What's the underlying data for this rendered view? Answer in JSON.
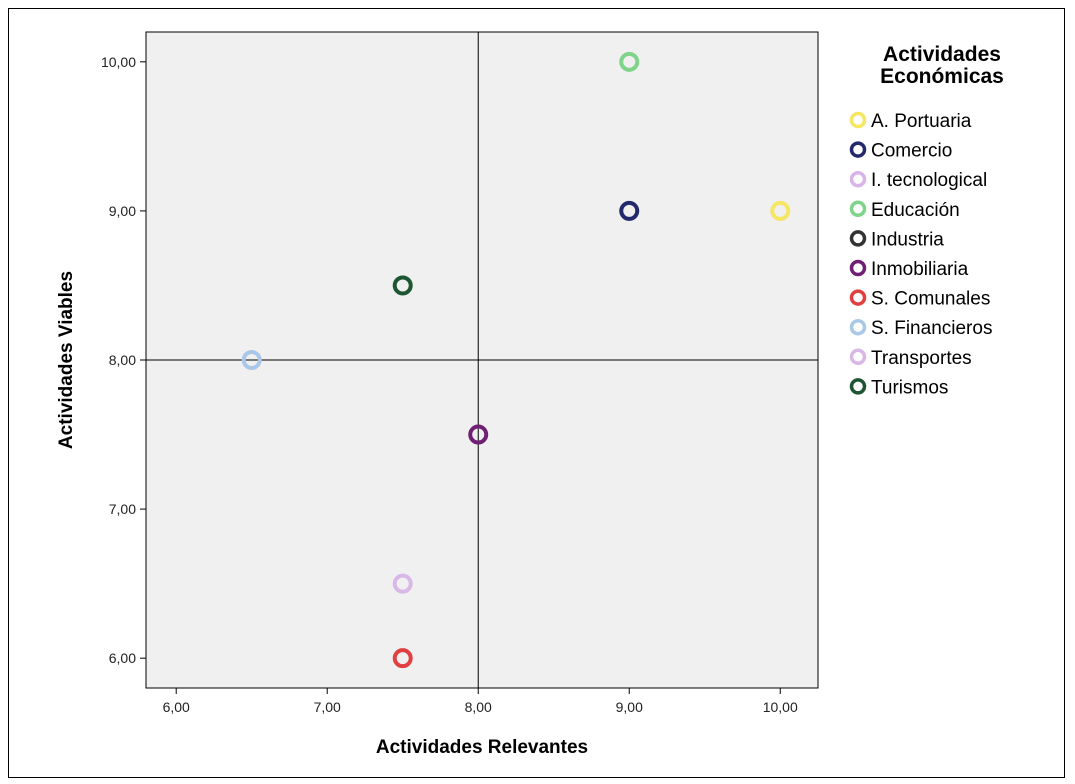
{
  "chart_data": {
    "type": "scatter",
    "xlabel": "Actividades Relevantes",
    "ylabel": "Actividades Viables",
    "xlim": [
      5.8,
      10.25
    ],
    "ylim": [
      5.8,
      10.2
    ],
    "x_ticks": [
      "6,00",
      "7,00",
      "8,00",
      "9,00",
      "10,00"
    ],
    "x_tick_values": [
      6,
      7,
      8,
      9,
      10
    ],
    "y_ticks": [
      "6,00",
      "7,00",
      "8,00",
      "9,00",
      "10,00"
    ],
    "y_tick_values": [
      6,
      7,
      8,
      9,
      10
    ],
    "reference_lines": {
      "x": 8,
      "y": 8
    },
    "plot_background": "#f0f0f0",
    "grid": false,
    "legend_title": [
      "Actividades",
      "Económicas"
    ],
    "legend_position": "right",
    "series": [
      {
        "name": "A. Portuaria",
        "color": "#f5e663",
        "x": 10.0,
        "y": 9.0
      },
      {
        "name": "Comercio",
        "color": "#222a6b",
        "x": 9.0,
        "y": 9.0
      },
      {
        "name": "I. tecnological",
        "color": "#d9b4e8",
        "x": null,
        "y": null
      },
      {
        "name": "Educación",
        "color": "#7fd48a",
        "x": 9.0,
        "y": 10.0
      },
      {
        "name": "Industria",
        "color": "#333333",
        "x": null,
        "y": null
      },
      {
        "name": "Inmobiliaria",
        "color": "#6e2072",
        "x": 8.0,
        "y": 7.5
      },
      {
        "name": "S. Comunales",
        "color": "#e04040",
        "x": 7.5,
        "y": 6.0
      },
      {
        "name": "S. Financieros",
        "color": "#a9c8e8",
        "x": 6.5,
        "y": 8.0
      },
      {
        "name": "Transportes",
        "color": "#d8b8e6",
        "x": 7.5,
        "y": 6.5
      },
      {
        "name": "Turismos",
        "color": "#1e5532",
        "x": 7.5,
        "y": 8.5
      }
    ]
  }
}
